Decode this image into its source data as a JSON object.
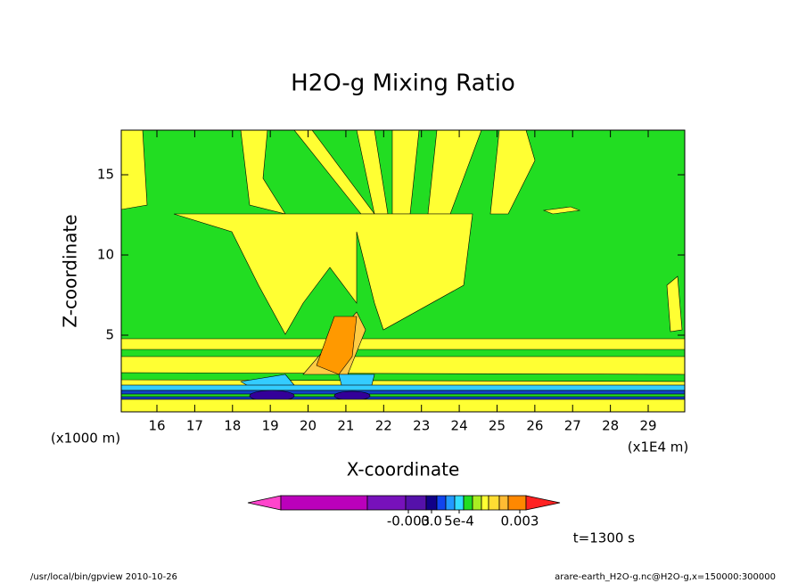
{
  "chart_data": {
    "type": "contour",
    "title": "H2O-g Mixing Ratio",
    "x_label": "X-coordinate",
    "y_label": "Z-coordinate",
    "x_unit": "(x1E4 m)",
    "y_unit": "(x1000 m)",
    "xlim": [
      15.056,
      29.967
    ],
    "ylim": [
      0.222,
      17.78
    ],
    "xticks": [
      16,
      17,
      18,
      19,
      20,
      21,
      22,
      23,
      24,
      25,
      26,
      27,
      28,
      29
    ],
    "yticks": [
      5,
      10,
      15
    ],
    "colorbar_ticks": [
      {
        "value": -0.003,
        "label": "-0.003"
      },
      {
        "value": 0,
        "label": "0.0"
      },
      {
        "value": 0.0005,
        "label": "5e-4"
      },
      {
        "value": 0.003,
        "label": "0.003"
      }
    ],
    "time_label": "t=1300 s",
    "footer_left": "/usr/local/bin/gpview  2010-10-26",
    "footer_right": "arare-earth_H2O-g.nc@H2O-g,x=150000:300000"
  }
}
